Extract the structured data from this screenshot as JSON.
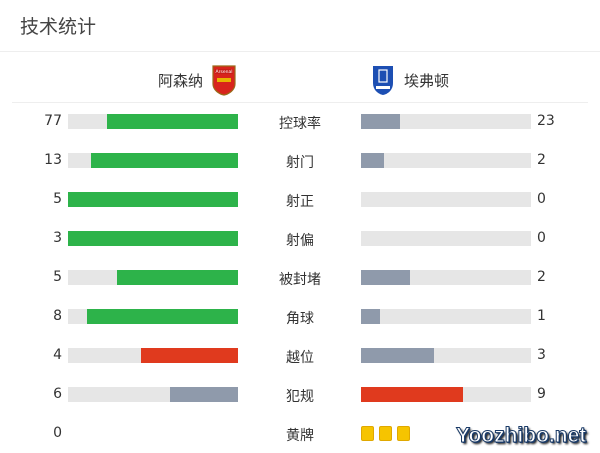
{
  "title": "技术统计",
  "home": {
    "name": "阿森纳",
    "logo_text": "Arsenal"
  },
  "away": {
    "name": "埃弗顿",
    "logo_text": "EFC"
  },
  "colors": {
    "green": "#2db34a",
    "gray": "#8f9aab",
    "red": "#e03a1e",
    "track": "#e6e6e6",
    "yellow": "#f6c400"
  },
  "stats": [
    {
      "label": "控球率",
      "home": "77",
      "away": "23",
      "home_frac": 0.77,
      "away_frac": 0.23,
      "home_color": "green",
      "away_color": "gray"
    },
    {
      "label": "射门",
      "home": "13",
      "away": "2",
      "home_frac": 0.867,
      "away_frac": 0.133,
      "home_color": "green",
      "away_color": "gray"
    },
    {
      "label": "射正",
      "home": "5",
      "away": "0",
      "home_frac": 1,
      "away_frac": 0,
      "home_color": "green",
      "away_color": "gray"
    },
    {
      "label": "射偏",
      "home": "3",
      "away": "0",
      "home_frac": 1,
      "away_frac": 0,
      "home_color": "green",
      "away_color": "gray"
    },
    {
      "label": "被封堵",
      "home": "5",
      "away": "2",
      "home_frac": 0.714,
      "away_frac": 0.286,
      "home_color": "green",
      "away_color": "gray"
    },
    {
      "label": "角球",
      "home": "8",
      "away": "1",
      "home_frac": 0.889,
      "away_frac": 0.111,
      "home_color": "green",
      "away_color": "gray"
    },
    {
      "label": "越位",
      "home": "4",
      "away": "3",
      "home_frac": 0.571,
      "away_frac": 0.429,
      "home_color": "red",
      "away_color": "gray"
    },
    {
      "label": "犯规",
      "home": "6",
      "away": "9",
      "home_frac": 0.4,
      "away_frac": 0.6,
      "home_color": "gray",
      "away_color": "red"
    }
  ],
  "yellow_cards": {
    "label": "黄牌",
    "home": "0",
    "away_count": 3
  },
  "watermark": "Yoozhibo.net"
}
